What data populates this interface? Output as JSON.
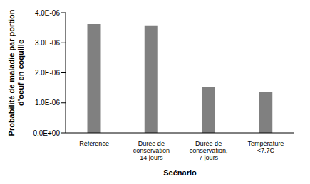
{
  "chart_data": {
    "type": "bar",
    "x_label": "Scénario",
    "y_label": "Probabilité de maladie par portion d'oeuf en coquille",
    "categories": [
      "Référence",
      "Durée de conservation 14 jours",
      "Durée de conservation, 7 jours",
      "Température <7.7C"
    ],
    "values": [
      3.62e-06,
      3.58e-06,
      1.52e-06,
      1.35e-06
    ],
    "color": "#808080",
    "ylim": [
      0,
      4e-06
    ],
    "yticks": [
      {
        "value": 0,
        "label": "0.0E+00"
      },
      {
        "value": 1e-06,
        "label": "1.0E-06"
      },
      {
        "value": 2e-06,
        "label": "2.0E-06"
      },
      {
        "value": 3e-06,
        "label": "3.0E-06"
      },
      {
        "value": 4e-06,
        "label": "4.0E-06"
      }
    ],
    "grid": false
  }
}
